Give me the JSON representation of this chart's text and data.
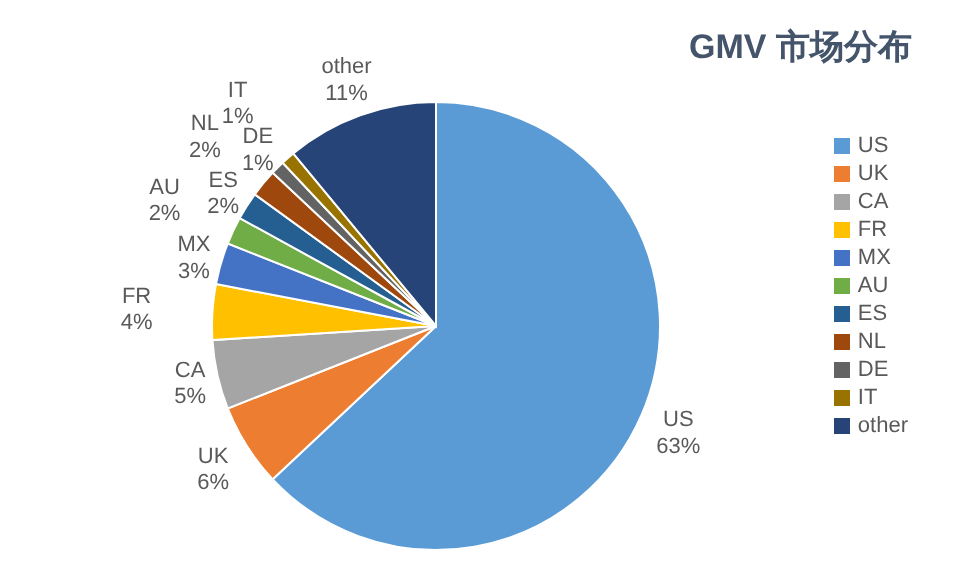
{
  "chart_data": {
    "type": "pie",
    "title": "GMV 市场分布",
    "categories": [
      "US",
      "UK",
      "CA",
      "FR",
      "MX",
      "AU",
      "ES",
      "NL",
      "DE",
      "IT",
      "other"
    ],
    "values": [
      63,
      6,
      5,
      4,
      3,
      2,
      2,
      2,
      1,
      1,
      11
    ],
    "value_labels": [
      "63%",
      "6%",
      "5%",
      "4%",
      "3%",
      "2%",
      "2%",
      "2%",
      "1%",
      "1%",
      "11%"
    ],
    "colors": [
      "#5b9bd5",
      "#ed7d31",
      "#a5a5a5",
      "#ffc000",
      "#4472c4",
      "#70ad47",
      "#255e91",
      "#9e480e",
      "#636363",
      "#997300",
      "#264478"
    ],
    "legend": "right"
  }
}
